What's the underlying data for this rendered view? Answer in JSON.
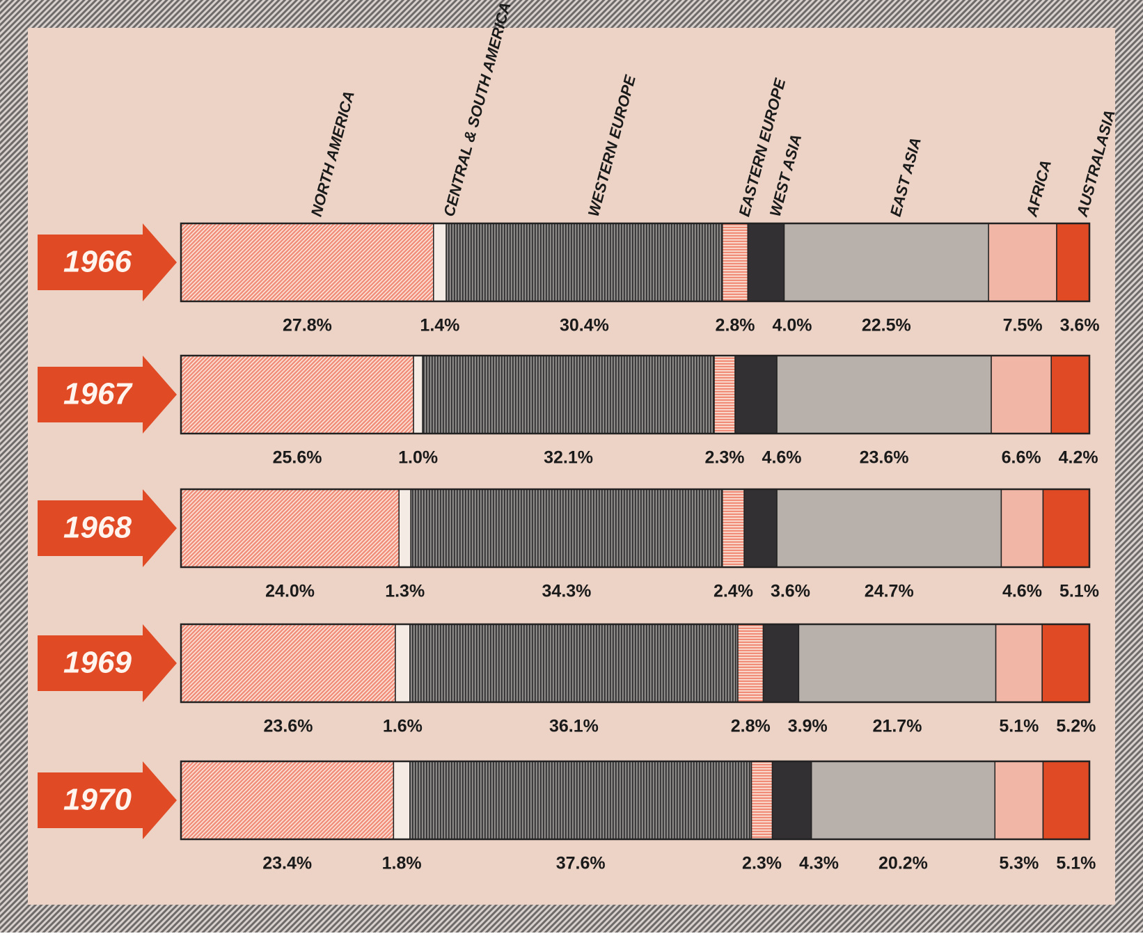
{
  "chart_data": {
    "type": "stacked-bar",
    "categories": [
      "1966",
      "1967",
      "1968",
      "1969",
      "1970"
    ],
    "category_color": "#e04a25",
    "series": [
      {
        "name": "NORTH AMERICA",
        "color": "#f08c78",
        "pattern": "diagonal",
        "values": [
          27.8,
          25.6,
          24.0,
          23.6,
          23.4
        ],
        "value_labels": [
          "27.8%",
          "25.6%",
          "24.0%",
          "23.6%",
          "23.4%"
        ]
      },
      {
        "name": "CENTRAL & SOUTH AMERICA",
        "color": "#f4ebe4",
        "values": [
          1.4,
          1.0,
          1.3,
          1.6,
          1.8
        ],
        "value_labels": [
          "1.4%",
          "1.0%",
          "1.3%",
          "1.6%",
          "1.8%"
        ]
      },
      {
        "name": "WESTERN EUROPE",
        "color": "#8c8888",
        "pattern": "vertical",
        "values": [
          30.4,
          32.1,
          34.3,
          36.1,
          37.6
        ],
        "value_labels": [
          "30.4%",
          "32.1%",
          "34.3%",
          "36.1%",
          "37.6%"
        ]
      },
      {
        "name": "EASTERN EUROPE",
        "color": "#f08c78",
        "pattern": "horizontal",
        "values": [
          2.8,
          2.3,
          2.4,
          2.8,
          2.3
        ],
        "value_labels": [
          "2.8%",
          "2.3%",
          "2.4%",
          "2.8%",
          "2.3%"
        ]
      },
      {
        "name": "WEST ASIA",
        "color": "#333033",
        "values": [
          4.0,
          4.6,
          3.6,
          3.9,
          4.3
        ],
        "value_labels": [
          "4.0%",
          "4.6%",
          "3.6%",
          "3.9%",
          "4.3%"
        ]
      },
      {
        "name": "EAST ASIA",
        "color": "#b8b0ab",
        "values": [
          22.5,
          23.6,
          24.7,
          21.7,
          20.2
        ],
        "value_labels": [
          "22.5%",
          "23.6%",
          "24.7%",
          "21.7%",
          "20.2%"
        ]
      },
      {
        "name": "AFRICA",
        "color": "#f2b6a6",
        "values": [
          7.5,
          6.6,
          4.6,
          5.1,
          5.3
        ],
        "value_labels": [
          "7.5%",
          "6.6%",
          "4.6%",
          "5.1%",
          "5.3%"
        ]
      },
      {
        "name": "AUSTRALASIA",
        "color": "#e04a25",
        "values": [
          3.6,
          4.2,
          5.1,
          5.2,
          5.1
        ],
        "value_labels": [
          "3.6%",
          "4.2%",
          "5.1%",
          "5.2%",
          "5.1%"
        ]
      }
    ]
  }
}
